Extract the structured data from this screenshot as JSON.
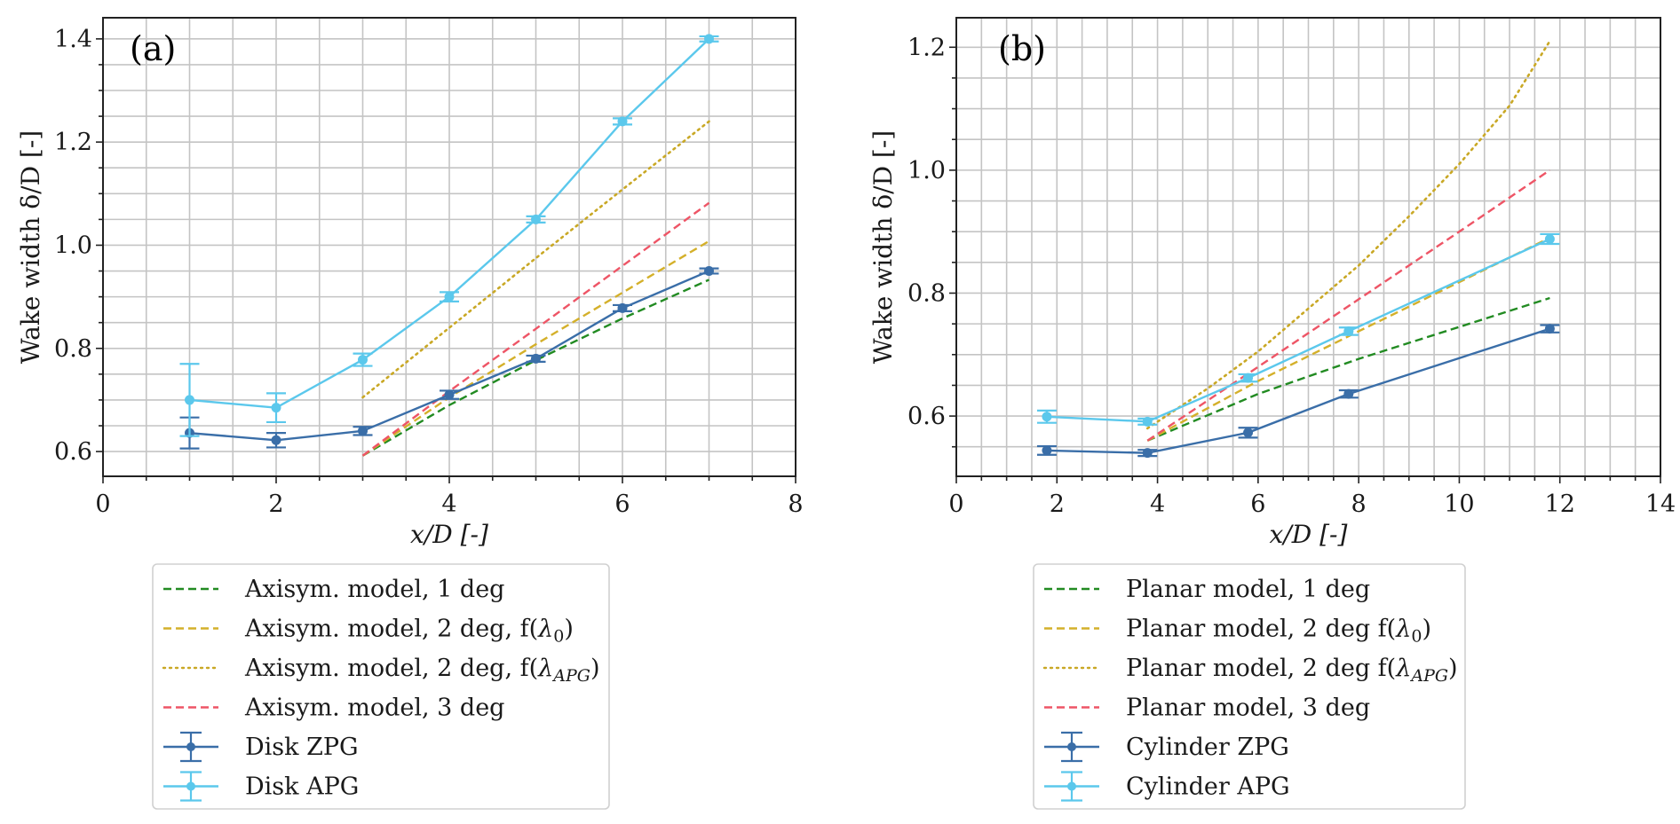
{
  "chart_data": [
    {
      "type": "line",
      "panel_label": "(a)",
      "xlabel": "x/D [-]",
      "ylabel": "Wake width δ/D [-]",
      "xlim": [
        0,
        8
      ],
      "ylim": [
        0.552,
        1.441
      ],
      "xticks": [
        0,
        2,
        4,
        6,
        8
      ],
      "xtick_labels": [
        "0",
        "2",
        "4",
        "6",
        "8"
      ],
      "yticks": [
        0.6,
        0.8,
        1.0,
        1.2,
        1.4
      ],
      "ytick_labels": [
        "0.6",
        "0.8",
        "1.0",
        "1.2",
        "1.4"
      ],
      "x_minor_step": 0.5,
      "y_minor_step": 0.05,
      "grid": true,
      "legend_position": "below",
      "series": [
        {
          "name": "Axisym. model, 1 deg",
          "style": "dashed",
          "color": "#228b22",
          "x": [
            3,
            4,
            5,
            6,
            7
          ],
          "y": [
            0.592,
            0.69,
            0.777,
            0.858,
            0.933
          ]
        },
        {
          "name": "Axisym. model, 2 deg, f(λ0)",
          "style": "dashed",
          "color": "#d4b02a",
          "x": [
            3,
            4,
            5,
            6,
            7
          ],
          "y": [
            0.592,
            0.705,
            0.808,
            0.908,
            1.008
          ]
        },
        {
          "name": "Axisym. model, 2 deg, f(λAPG)",
          "style": "dotted",
          "color": "#c9a825",
          "x": [
            3,
            4,
            5,
            6,
            7
          ],
          "y": [
            0.705,
            0.84,
            0.975,
            1.108,
            1.24
          ]
        },
        {
          "name": "Axisym. model, 3 deg",
          "style": "dashed",
          "color": "#ee5566",
          "x": [
            3,
            4,
            5,
            6,
            7
          ],
          "y": [
            0.592,
            0.717,
            0.838,
            0.96,
            1.082
          ]
        },
        {
          "name": "Disk ZPG",
          "style": "errorbar",
          "color": "#3a6ea8",
          "x": [
            1,
            2,
            3,
            4,
            5,
            6,
            7
          ],
          "y": [
            0.636,
            0.622,
            0.64,
            0.71,
            0.78,
            0.878,
            0.95
          ],
          "yerr": [
            0.03,
            0.014,
            0.008,
            0.008,
            0.006,
            0.006,
            0.005
          ]
        },
        {
          "name": "Disk APG",
          "style": "errorbar",
          "color": "#5bc8ec",
          "x": [
            1,
            2,
            3,
            4,
            5,
            6,
            7
          ],
          "y": [
            0.7,
            0.685,
            0.778,
            0.9,
            1.05,
            1.24,
            1.4
          ],
          "yerr": [
            0.07,
            0.028,
            0.012,
            0.009,
            0.006,
            0.006,
            0.005
          ]
        }
      ]
    },
    {
      "type": "line",
      "panel_label": "(b)",
      "xlabel": "x/D [-]",
      "ylabel": "Wake width δ/D [-]",
      "xlim": [
        0,
        14
      ],
      "ylim": [
        0.502,
        1.248
      ],
      "xticks": [
        0,
        2,
        4,
        6,
        8,
        10,
        12,
        14
      ],
      "xtick_labels": [
        "0",
        "2",
        "4",
        "6",
        "8",
        "10",
        "12",
        "14"
      ],
      "yticks": [
        0.6,
        0.8,
        1.0,
        1.2
      ],
      "ytick_labels": [
        "0.6",
        "0.8",
        "1.0",
        "1.2"
      ],
      "x_minor_step": 0.5,
      "y_minor_step": 0.05,
      "grid": true,
      "legend_position": "below",
      "series": [
        {
          "name": "Planar model, 1 deg",
          "style": "dashed",
          "color": "#228b22",
          "x": [
            3.8,
            6,
            8,
            10,
            11.8
          ],
          "y": [
            0.56,
            0.636,
            0.693,
            0.745,
            0.792
          ]
        },
        {
          "name": "Planar model, 2 deg f(λ0)",
          "style": "dashed",
          "color": "#d4b02a",
          "x": [
            3.8,
            6,
            8,
            10,
            11.8
          ],
          "y": [
            0.56,
            0.657,
            0.738,
            0.818,
            0.89
          ]
        },
        {
          "name": "Planar model, 2 deg f(λAPG)",
          "style": "dotted",
          "color": "#c9a825",
          "x": [
            3.8,
            5,
            6,
            7,
            8,
            9,
            10,
            11,
            11.8
          ],
          "y": [
            0.58,
            0.645,
            0.705,
            0.775,
            0.845,
            0.925,
            1.01,
            1.105,
            1.21
          ]
        },
        {
          "name": "Planar model, 3 deg",
          "style": "dashed",
          "color": "#ee5566",
          "x": [
            3.8,
            6,
            8,
            10,
            11.8
          ],
          "y": [
            0.56,
            0.68,
            0.79,
            0.9,
            1.0
          ]
        },
        {
          "name": "Cylinder ZPG",
          "style": "errorbar",
          "color": "#3a6ea8",
          "x": [
            1.8,
            3.8,
            5.8,
            7.8,
            11.8
          ],
          "y": [
            0.544,
            0.54,
            0.573,
            0.636,
            0.742
          ],
          "yerr": [
            0.007,
            0.005,
            0.008,
            0.006,
            0.006
          ]
        },
        {
          "name": "Cylinder APG",
          "style": "errorbar",
          "color": "#5bc8ec",
          "x": [
            1.8,
            3.8,
            5.8,
            7.8,
            11.8
          ],
          "y": [
            0.599,
            0.591,
            0.662,
            0.738,
            0.888
          ],
          "yerr": [
            0.01,
            0.005,
            0.006,
            0.006,
            0.008
          ]
        }
      ]
    }
  ],
  "legends": [
    {
      "entries": [
        {
          "prefix": "Axisym. model, 1 deg",
          "sym": "",
          "sub": "",
          "suffix": ""
        },
        {
          "prefix": "Axisym. model, 2 deg, f(",
          "sym": "λ",
          "sub": "0",
          "suffix": ")"
        },
        {
          "prefix": "Axisym. model, 2 deg, f(",
          "sym": "λ",
          "sub": "APG",
          "suffix": ")"
        },
        {
          "prefix": "Axisym. model, 3 deg",
          "sym": "",
          "sub": "",
          "suffix": ""
        },
        {
          "prefix": "Disk ZPG",
          "sym": "",
          "sub": "",
          "suffix": ""
        },
        {
          "prefix": "Disk APG",
          "sym": "",
          "sub": "",
          "suffix": ""
        }
      ]
    },
    {
      "entries": [
        {
          "prefix": "Planar model, 1 deg",
          "sym": "",
          "sub": "",
          "suffix": ""
        },
        {
          "prefix": "Planar model, 2 deg f(",
          "sym": "λ",
          "sub": "0",
          "suffix": ")"
        },
        {
          "prefix": "Planar model, 2 deg f(",
          "sym": "λ",
          "sub": "APG",
          "suffix": ")"
        },
        {
          "prefix": "Planar model, 3 deg",
          "sym": "",
          "sub": "",
          "suffix": ""
        },
        {
          "prefix": "Cylinder ZPG",
          "sym": "",
          "sub": "",
          "suffix": ""
        },
        {
          "prefix": "Cylinder APG",
          "sym": "",
          "sub": "",
          "suffix": ""
        }
      ]
    }
  ]
}
